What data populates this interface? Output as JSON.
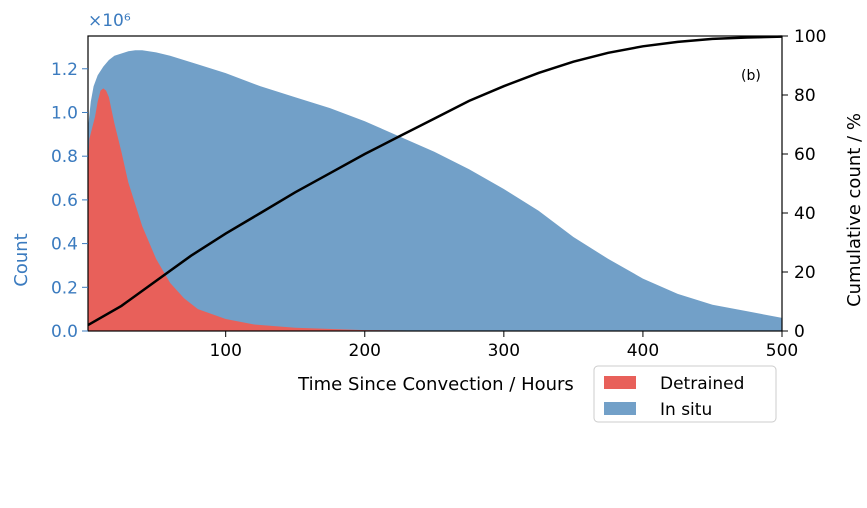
{
  "chart_data": {
    "type": "area",
    "panel_label": "(b)",
    "xlabel": "Time Since Convection / Hours",
    "ylabel_left": "Count",
    "ylabel_right": "Cumulative count / %",
    "left_scale_label": "×10⁶",
    "xlim": [
      1,
      500
    ],
    "ylim_left": [
      0,
      1.35
    ],
    "ylim_right": [
      0,
      100
    ],
    "x_ticks": [
      100,
      200,
      300,
      400,
      500
    ],
    "y_left_ticks": [
      "0.0",
      "0.2",
      "0.4",
      "0.6",
      "0.8",
      "1.0",
      "1.2"
    ],
    "y_right_ticks": [
      0,
      20,
      40,
      60,
      80,
      100
    ],
    "grid": false,
    "legend_position": "bottom-right",
    "colors": {
      "detrained": "#e8605a",
      "in_situ": "#72a0c8",
      "cumulative": "#000000",
      "left_axis": "#3b7bbf"
    },
    "series": [
      {
        "name": "In situ",
        "kind": "histogram",
        "x": [
          1,
          3,
          5,
          8,
          12,
          16,
          20,
          25,
          30,
          35,
          40,
          50,
          60,
          80,
          100,
          125,
          150,
          175,
          200,
          225,
          250,
          275,
          300,
          325,
          350,
          375,
          400,
          425,
          450,
          475,
          500
        ],
        "values": [
          0.93,
          1.05,
          1.12,
          1.17,
          1.21,
          1.24,
          1.26,
          1.27,
          1.28,
          1.285,
          1.285,
          1.275,
          1.26,
          1.22,
          1.18,
          1.12,
          1.07,
          1.02,
          0.96,
          0.89,
          0.82,
          0.74,
          0.65,
          0.55,
          0.43,
          0.33,
          0.24,
          0.17,
          0.12,
          0.09,
          0.06
        ]
      },
      {
        "name": "Detrained",
        "kind": "histogram",
        "x": [
          1,
          2,
          4,
          6,
          8,
          10,
          12,
          14,
          16,
          18,
          20,
          25,
          30,
          40,
          50,
          60,
          70,
          80,
          100,
          120,
          150,
          200,
          250,
          300,
          500
        ],
        "values": [
          0.75,
          0.88,
          0.93,
          0.98,
          1.05,
          1.1,
          1.11,
          1.1,
          1.07,
          1.01,
          0.95,
          0.82,
          0.68,
          0.48,
          0.33,
          0.22,
          0.15,
          0.1,
          0.055,
          0.03,
          0.015,
          0.004,
          0.001,
          0.0,
          0.0
        ]
      },
      {
        "name": "",
        "kind": "cumulative",
        "axis": "right",
        "x": [
          1,
          25,
          50,
          75,
          100,
          125,
          150,
          175,
          200,
          225,
          250,
          275,
          300,
          325,
          350,
          375,
          400,
          425,
          450,
          475,
          500
        ],
        "values": [
          2,
          8.5,
          17,
          25.5,
          33,
          40,
          47,
          53.5,
          60,
          66,
          72,
          78,
          83,
          87.5,
          91.3,
          94.3,
          96.5,
          98,
          99,
          99.5,
          99.8
        ]
      }
    ]
  }
}
